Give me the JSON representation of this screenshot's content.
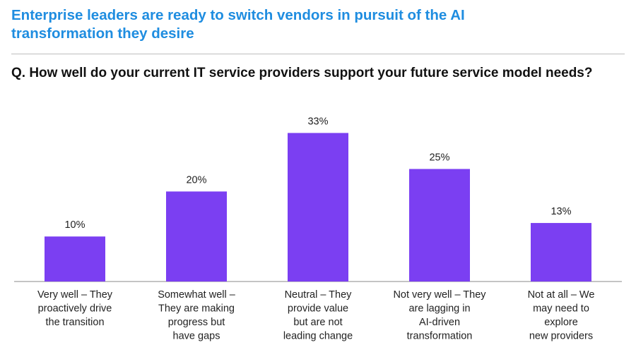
{
  "header": {
    "title": "Enterprise leaders are ready to switch vendors in pursuit of the AI\ntransformation they desire",
    "question": "Q. How well do your current IT service providers support your future service model needs?"
  },
  "colors": {
    "title": "#1f8de0",
    "bar": "#7b3ff2",
    "axis": "#888888"
  },
  "chart_data": {
    "type": "bar",
    "categories": [
      "Very well – They proactively drive the transition",
      "Somewhat well – They are making progress but have gaps",
      "Neutral – They provide value but are not leading change",
      "Not very well – They are lagging in AI-driven transformation",
      "Not at all – We may need to explore new providers"
    ],
    "category_lines": [
      [
        "Very well – They",
        "proactively drive",
        "the transition"
      ],
      [
        "Somewhat well –",
        "They are making",
        "progress but",
        "have gaps"
      ],
      [
        "Neutral – They",
        "provide value",
        "but are not",
        "leading change"
      ],
      [
        "Not very well – They",
        "are lagging in",
        "AI-driven",
        "transformation"
      ],
      [
        "Not at all – We",
        "may need to",
        "explore",
        "new providers"
      ]
    ],
    "values": [
      10,
      20,
      33,
      25,
      13
    ],
    "value_labels": [
      "10%",
      "20%",
      "33%",
      "25%",
      "13%"
    ],
    "ylim": [
      0,
      35
    ],
    "grid": false,
    "legend": "none"
  }
}
